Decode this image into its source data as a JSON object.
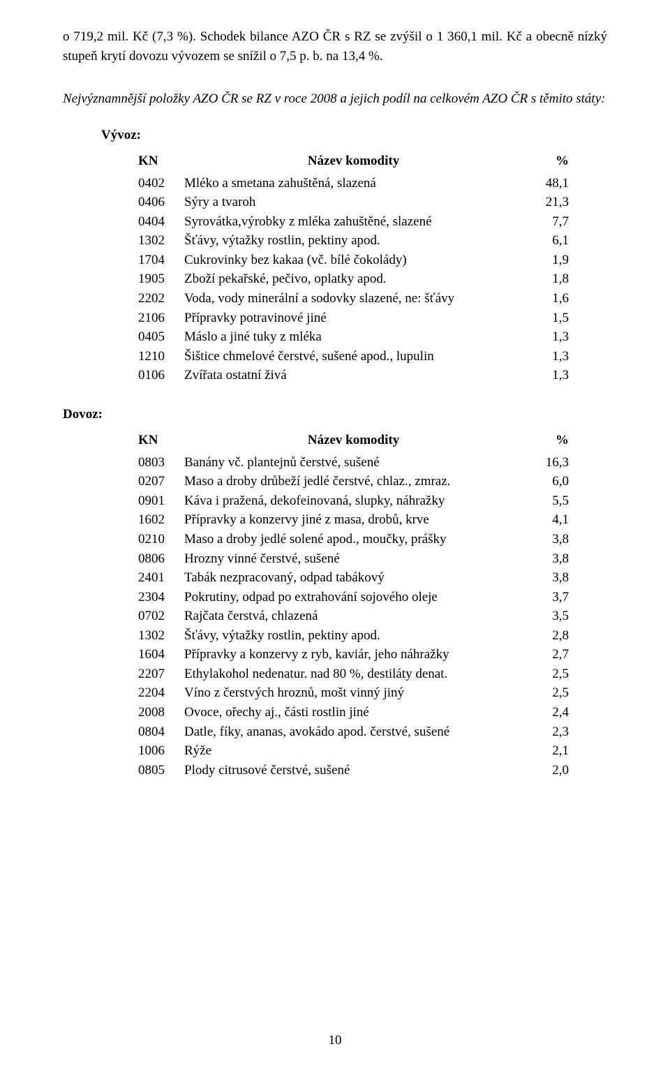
{
  "intro": "o 719,2 mil. Kč (7,3 %). Schodek bilance AZO ČR s RZ se zvýšil o 1 360,1 mil. Kč a obecně nízký stupeň krytí dovozu vývozem se snížil o 7,5 p. b. na 13,4 %.",
  "section_title": "Nejvýznamnější položky AZO ČR se RZ v roce 2008 a jejich podíl na celkovém AZO ČR s těmito státy:",
  "export_label": "Vývoz:",
  "import_label": "Dovoz:",
  "col_kn": "KN",
  "col_name": "Název komodity",
  "col_pct": "%",
  "export_rows": [
    {
      "kn": "0402",
      "name": "Mléko a smetana zahuštěná, slazená",
      "pct": "48,1"
    },
    {
      "kn": "0406",
      "name": "Sýry a tvaroh",
      "pct": "21,3"
    },
    {
      "kn": "0404",
      "name": "Syrovátka,výrobky z mléka zahuštěné, slazené",
      "pct": "7,7"
    },
    {
      "kn": "1302",
      "name": "Šťávy, výtažky rostlin, pektiny apod.",
      "pct": "6,1"
    },
    {
      "kn": "1704",
      "name": "Cukrovinky bez kakaa (vč. bílé čokolády)",
      "pct": "1,9"
    },
    {
      "kn": "1905",
      "name": "Zboží pekařské, pečivo, oplatky apod.",
      "pct": "1,8"
    },
    {
      "kn": "2202",
      "name": "Voda, vody minerální a sodovky slazené, ne: šťávy",
      "pct": "1,6"
    },
    {
      "kn": "2106",
      "name": "Přípravky potravinové jiné",
      "pct": "1,5"
    },
    {
      "kn": "0405",
      "name": "Máslo a jiné tuky z mléka",
      "pct": "1,3"
    },
    {
      "kn": "1210",
      "name": "Šištice chmelové čerstvé, sušené apod., lupulin",
      "pct": "1,3"
    },
    {
      "kn": "0106",
      "name": "Zvířata ostatní živá",
      "pct": "1,3"
    }
  ],
  "import_rows": [
    {
      "kn": "0803",
      "name": "Banány vč. plantejnů čerstvé, sušené",
      "pct": "16,3"
    },
    {
      "kn": "0207",
      "name": "Maso a droby drůbeží jedlé čerstvé, chlaz., zmraz.",
      "pct": "6,0"
    },
    {
      "kn": "0901",
      "name": "Káva i pražená, dekofeinovaná, slupky, náhražky",
      "pct": "5,5"
    },
    {
      "kn": "1602",
      "name": "Přípravky a konzervy jiné z masa, drobů, krve",
      "pct": "4,1"
    },
    {
      "kn": "0210",
      "name": "Maso a droby jedlé solené apod., moučky, prášky",
      "pct": "3,8"
    },
    {
      "kn": "0806",
      "name": "Hrozny vinné čerstvé, sušené",
      "pct": "3,8"
    },
    {
      "kn": "2401",
      "name": "Tabák nezpracovaný, odpad tabákový",
      "pct": "3,8"
    },
    {
      "kn": "2304",
      "name": "Pokrutiny, odpad po extrahování sojového oleje",
      "pct": "3,7"
    },
    {
      "kn": "0702",
      "name": "Rajčata čerstvá, chlazená",
      "pct": "3,5"
    },
    {
      "kn": "1302",
      "name": "Šťávy, výtažky rostlin, pektiny apod.",
      "pct": "2,8"
    },
    {
      "kn": "1604",
      "name": "Přípravky a konzervy z ryb, kaviár, jeho náhražky",
      "pct": "2,7"
    },
    {
      "kn": "2207",
      "name": "Ethylakohol nedenatur. nad 80 %, destiláty denat.",
      "pct": "2,5"
    },
    {
      "kn": "2204",
      "name": "Víno z čerstvých hroznů, mošt vinný jiný",
      "pct": "2,5"
    },
    {
      "kn": "2008",
      "name": "Ovoce, ořechy aj., části rostlin jiné",
      "pct": "2,4"
    },
    {
      "kn": "0804",
      "name": "Datle, fíky, ananas, avokádo apod. čerstvé, sušené",
      "pct": "2,3"
    },
    {
      "kn": "1006",
      "name": "Rýže",
      "pct": "2,1"
    },
    {
      "kn": "0805",
      "name": "Plody citrusové čerstvé, sušené",
      "pct": "2,0"
    }
  ],
  "page_number": "10"
}
